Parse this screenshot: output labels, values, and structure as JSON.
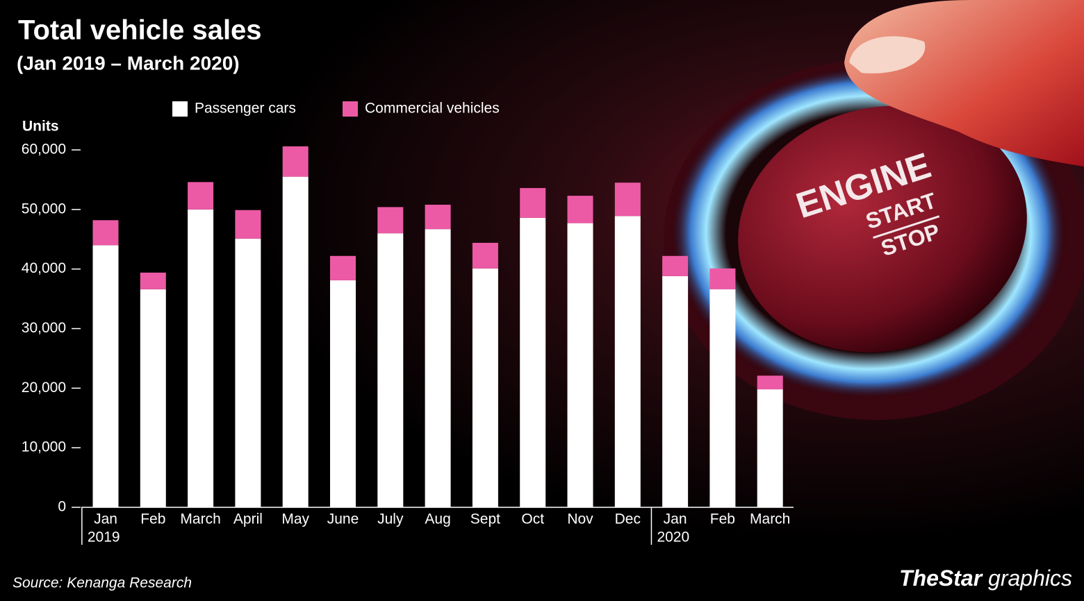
{
  "chart_data": {
    "type": "stacked-bar",
    "title": "Total vehicle sales",
    "subtitle": "(Jan 2019 – March 2020)",
    "y_label": "Units",
    "categories": [
      "Jan",
      "Feb",
      "March",
      "April",
      "May",
      "June",
      "July",
      "Aug",
      "Sept",
      "Oct",
      "Nov",
      "Dec",
      "Jan",
      "Feb",
      "March"
    ],
    "category_years": [
      "2019",
      null,
      null,
      null,
      null,
      null,
      null,
      null,
      null,
      null,
      null,
      null,
      "2020",
      null,
      null
    ],
    "series": [
      {
        "name": "Passenger cars",
        "color": "#ffffff",
        "values": [
          44000,
          36600,
          50000,
          45100,
          55500,
          38100,
          46000,
          46700,
          40100,
          48600,
          47700,
          48900,
          38800,
          36600,
          19800
        ]
      },
      {
        "name": "Commercial vehicles",
        "color": "#ec5aa5",
        "values": [
          4200,
          2800,
          4600,
          4800,
          5100,
          4100,
          4400,
          4100,
          4300,
          5000,
          4600,
          5600,
          3400,
          3500,
          2300
        ]
      }
    ],
    "ylim": [
      0,
      60000
    ],
    "yticks": [
      0,
      {
        "value": 10000,
        "label": "10,000"
      },
      {
        "value": 20000,
        "label": "20,000"
      },
      {
        "value": 30000,
        "label": "30,000"
      },
      {
        "value": 40000,
        "label": "40,000"
      },
      {
        "value": 50000,
        "label": "50,000"
      },
      {
        "value": 60000,
        "label": "60,000"
      }
    ],
    "grid": false,
    "source": "Source: Kenanga Research"
  },
  "brand": {
    "name": "TheStar",
    "suffix": "graphics"
  },
  "photo": {
    "text": [
      "ENGINE",
      "START",
      "STOP"
    ]
  }
}
